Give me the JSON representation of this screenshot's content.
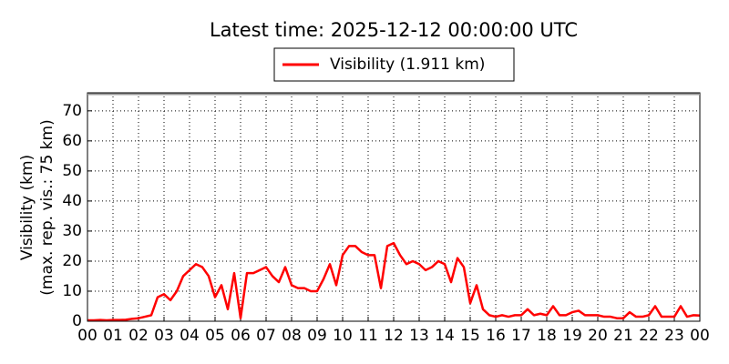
{
  "chart_data": {
    "type": "line",
    "title": "Latest time: 2025-12-12 00:00:00 UTC",
    "y_label": [
      "Visibility (km)",
      "(max. rep. vis.: 75 km)"
    ],
    "x": [
      0,
      0.25,
      0.5,
      0.75,
      1,
      1.25,
      1.5,
      1.75,
      2,
      2.25,
      2.5,
      2.75,
      3,
      3.25,
      3.5,
      3.75,
      4,
      4.25,
      4.5,
      4.75,
      5,
      5.25,
      5.5,
      5.75,
      6,
      6.25,
      6.5,
      6.75,
      7,
      7.25,
      7.5,
      7.75,
      8,
      8.25,
      8.5,
      8.75,
      9,
      9.25,
      9.5,
      9.75,
      10,
      10.25,
      10.5,
      10.75,
      11,
      11.25,
      11.5,
      11.75,
      12,
      12.25,
      12.5,
      12.75,
      13,
      13.25,
      13.5,
      13.75,
      14,
      14.25,
      14.5,
      14.75,
      15,
      15.25,
      15.5,
      15.75,
      16,
      16.25,
      16.5,
      16.75,
      17,
      17.25,
      17.5,
      17.75,
      18,
      18.25,
      18.5,
      18.75,
      19,
      19.25,
      19.5,
      19.75,
      20,
      20.25,
      20.5,
      20.75,
      21,
      21.25,
      21.5,
      21.75,
      22,
      22.25,
      22.5,
      22.75,
      23,
      23.25,
      23.5,
      23.75,
      24
    ],
    "series": [
      {
        "name": "Visibility (1.911 km)",
        "color": "#ff0000",
        "values": [
          0.3,
          0.3,
          0.4,
          0.3,
          0.4,
          0.4,
          0.5,
          0.8,
          1,
          1.5,
          2,
          8,
          9,
          7,
          10,
          15,
          17,
          19,
          18,
          15,
          8,
          12,
          4,
          16,
          1,
          16,
          16,
          17,
          18,
          15,
          13,
          18,
          12,
          11,
          11,
          10,
          10,
          14,
          19,
          12,
          22,
          25,
          25,
          23,
          22,
          22,
          11,
          25,
          26,
          22,
          19,
          20,
          19,
          17,
          18,
          20,
          19,
          13,
          21,
          18,
          6,
          12,
          4,
          2,
          1.5,
          2,
          1.5,
          2,
          2,
          4,
          2,
          2.5,
          2,
          5,
          2,
          2,
          3,
          3.5,
          2,
          2,
          2,
          1.5,
          1.5,
          1,
          1,
          3,
          1.5,
          1.5,
          2,
          5,
          1.5,
          1.5,
          1.5,
          5,
          1.5,
          2,
          1.9
        ]
      }
    ],
    "xlim": [
      0,
      24
    ],
    "xticks": [
      {
        "value": 0,
        "label": "00"
      },
      {
        "value": 1,
        "label": "01"
      },
      {
        "value": 2,
        "label": "02"
      },
      {
        "value": 3,
        "label": "03"
      },
      {
        "value": 4,
        "label": "04"
      },
      {
        "value": 5,
        "label": "05"
      },
      {
        "value": 6,
        "label": "06"
      },
      {
        "value": 7,
        "label": "07"
      },
      {
        "value": 8,
        "label": "08"
      },
      {
        "value": 9,
        "label": "09"
      },
      {
        "value": 10,
        "label": "10"
      },
      {
        "value": 11,
        "label": "11"
      },
      {
        "value": 12,
        "label": "12"
      },
      {
        "value": 13,
        "label": "13"
      },
      {
        "value": 14,
        "label": "14"
      },
      {
        "value": 15,
        "label": "15"
      },
      {
        "value": 16,
        "label": "16"
      },
      {
        "value": 17,
        "label": "17"
      },
      {
        "value": 18,
        "label": "18"
      },
      {
        "value": 19,
        "label": "19"
      },
      {
        "value": 20,
        "label": "20"
      },
      {
        "value": 21,
        "label": "21"
      },
      {
        "value": 22,
        "label": "22"
      },
      {
        "value": 23,
        "label": "23"
      },
      {
        "value": 24,
        "label": "00"
      }
    ],
    "ylim": [
      0,
      76
    ],
    "yticks": [
      0,
      10,
      20,
      30,
      40,
      50,
      60,
      70
    ],
    "grid": true
  }
}
